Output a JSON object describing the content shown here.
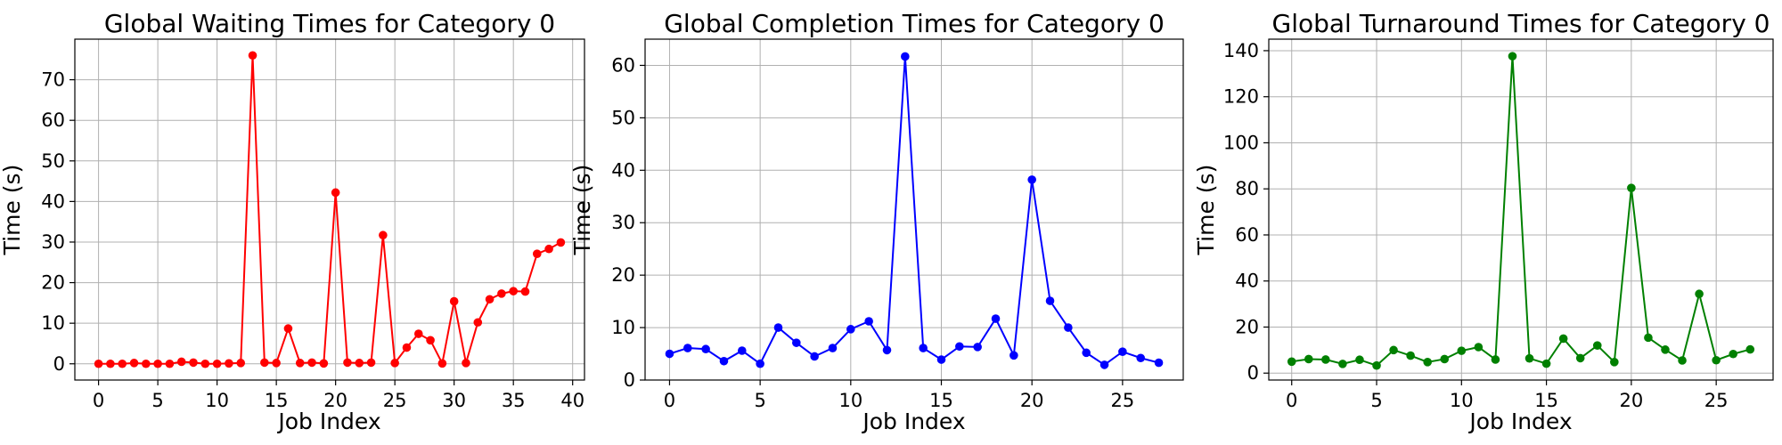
{
  "chart_data": [
    {
      "type": "line",
      "title": "Global Waiting Times for Category 0",
      "xlabel": "Job Index",
      "ylabel": "Time (s)",
      "xlim": [
        -2,
        41
      ],
      "ylim": [
        -4,
        80
      ],
      "xticks": [
        0,
        5,
        10,
        15,
        20,
        25,
        30,
        35,
        40
      ],
      "yticks": [
        0,
        10,
        20,
        30,
        40,
        50,
        60,
        70
      ],
      "grid": true,
      "color": "#ff0000",
      "x": [
        0,
        1,
        2,
        3,
        4,
        5,
        6,
        7,
        8,
        9,
        10,
        11,
        12,
        13,
        14,
        15,
        16,
        17,
        18,
        19,
        20,
        21,
        22,
        23,
        24,
        25,
        26,
        27,
        28,
        29,
        30,
        31,
        32,
        33,
        34,
        35,
        36,
        37,
        38,
        39
      ],
      "y": [
        0,
        0,
        0,
        0.2,
        0,
        0,
        0,
        0.5,
        0.3,
        0,
        0,
        0.1,
        0.2,
        76,
        0.3,
        0.2,
        8.7,
        0.2,
        0.3,
        0.1,
        42.2,
        0.3,
        0.2,
        0.3,
        31.7,
        0.2,
        4,
        7.4,
        5.8,
        0.1,
        15.4,
        0.2,
        10.2,
        15.9,
        17.3,
        17.9,
        17.8,
        27.1,
        28.3,
        29.9
      ]
    },
    {
      "type": "line",
      "title": "Global Completion Times for Category 0",
      "xlabel": "Job Index",
      "ylabel": "Time (s)",
      "xlim": [
        -1.35,
        28.35
      ],
      "ylim": [
        0,
        65
      ],
      "xticks": [
        0,
        5,
        10,
        15,
        20,
        25
      ],
      "yticks": [
        0,
        10,
        20,
        30,
        40,
        50,
        60
      ],
      "grid": true,
      "color": "#0000ff",
      "x": [
        0,
        1,
        2,
        3,
        4,
        5,
        6,
        7,
        8,
        9,
        10,
        11,
        12,
        13,
        14,
        15,
        16,
        17,
        18,
        19,
        20,
        21,
        22,
        23,
        24,
        25,
        26,
        27
      ],
      "y": [
        5,
        6.1,
        5.9,
        3.6,
        5.6,
        3.1,
        10,
        7.1,
        4.5,
        6.1,
        9.7,
        11.2,
        5.7,
        61.7,
        6.1,
        3.9,
        6.4,
        6.3,
        11.7,
        4.7,
        38.2,
        15.1,
        10,
        5.2,
        2.9,
        5.4,
        4.2,
        3.3
      ]
    },
    {
      "type": "line",
      "title": "Global Turnaround Times for Category 0",
      "xlabel": "Job Index",
      "ylabel": "Time (s)",
      "xlim": [
        -1.35,
        28.35
      ],
      "ylim": [
        -3,
        145
      ],
      "xticks": [
        0,
        5,
        10,
        15,
        20,
        25
      ],
      "yticks": [
        0,
        20,
        40,
        60,
        80,
        100,
        120,
        140
      ],
      "grid": true,
      "color": "#008000",
      "x": [
        0,
        1,
        2,
        3,
        4,
        5,
        6,
        7,
        8,
        9,
        10,
        11,
        12,
        13,
        14,
        15,
        16,
        17,
        18,
        19,
        20,
        21,
        22,
        23,
        24,
        25,
        26,
        27
      ],
      "y": [
        5,
        6.1,
        5.9,
        4,
        5.8,
        3.3,
        10,
        7.6,
        4.8,
        6.1,
        9.7,
        11.3,
        5.9,
        137.6,
        6.4,
        4.1,
        15,
        6.5,
        12,
        4.8,
        80.4,
        15.4,
        10.2,
        5.5,
        34.4,
        5.6,
        8.3,
        10.3
      ]
    }
  ]
}
